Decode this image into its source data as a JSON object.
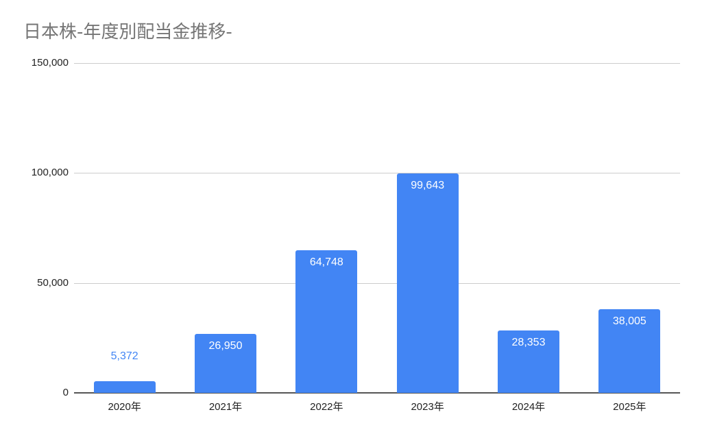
{
  "chart_data": {
    "type": "bar",
    "title": "日本株-年度別配当金推移-",
    "xlabel": "",
    "ylabel": "",
    "categories": [
      "2020年",
      "2021年",
      "2022年",
      "2023年",
      "2024年",
      "2025年"
    ],
    "values": [
      5372,
      26950,
      64748,
      99643,
      28353,
      38005
    ],
    "value_labels": [
      "5,372",
      "26,950",
      "64,748",
      "99,643",
      "28,353",
      "38,005"
    ],
    "ylim": [
      0,
      150000
    ],
    "yticks": [
      0,
      50000,
      100000,
      150000
    ],
    "ytick_labels": [
      "0",
      "50,000",
      "100,000",
      "150,000"
    ],
    "grid": true,
    "legend": "none",
    "bar_color": "#4285f4",
    "inside_label_color": "#ffffff",
    "outside_label_color": "#4285f4"
  }
}
